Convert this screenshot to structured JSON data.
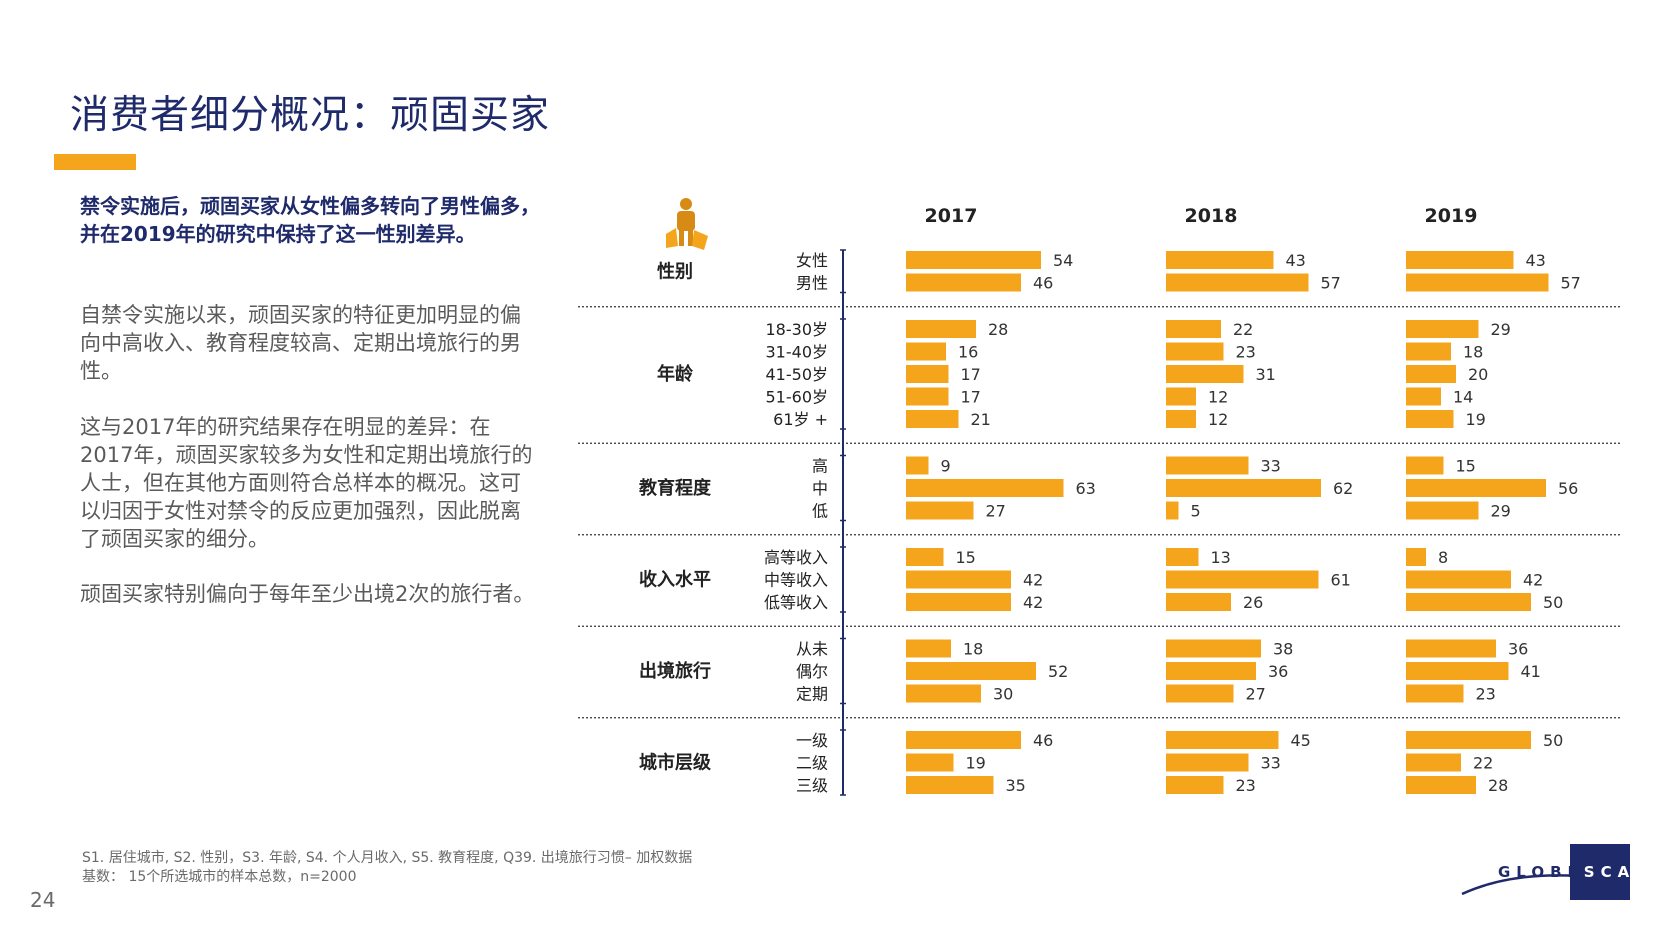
{
  "title": "消费者细分概况：顽固买家",
  "lead": "禁令实施后，顽固买家从女性偏多转向了男性偏多，并在2019年的研究中保持了这一性别差异。",
  "paragraphs": [
    "自禁令实施以来，顽固买家的特征更加明显的偏向中高收入、教育程度较高、定期出境旅行的男性。",
    "这与2017年的研究结果存在明显的差异：在2017年，顽固买家较多为女性和定期出境旅行的人士，但在其他方面则符合总样本的概况。这可以归因于女性对禁令的反应更加强烈，因此脱离了顽固买家的细分。",
    "顽固买家特别偏向于每年至少出境2次的旅行者。"
  ],
  "footnotes": [
    "S1. 居住城市, S2. 性别，S3. 年龄, S4. 个人月收入, S5. 教育程度, Q39. 出境旅行习惯– 加权数据",
    "基数： 15个所选城市的样本总数，n=2000"
  ],
  "page_number": "24",
  "logo": {
    "left": "GLOBE",
    "right": "SCAN"
  },
  "icon": "shopper-with-bags-icon",
  "colors": {
    "bar": "#f4a51c",
    "title": "#1f2a6b",
    "accent": "#f4a51c",
    "axis": "#1f2a6b"
  },
  "chart_data": {
    "type": "bar",
    "orientation": "horizontal",
    "series": [
      {
        "name": "2017"
      },
      {
        "name": "2018"
      },
      {
        "name": "2019"
      }
    ],
    "groups": [
      {
        "label": "性别",
        "rows": [
          {
            "label": "女性",
            "values": [
              54,
              43,
              43
            ]
          },
          {
            "label": "男性",
            "values": [
              46,
              57,
              57
            ]
          }
        ]
      },
      {
        "label": "年龄",
        "rows": [
          {
            "label": "18-30岁",
            "values": [
              28,
              22,
              29
            ]
          },
          {
            "label": "31-40岁",
            "values": [
              16,
              23,
              18
            ]
          },
          {
            "label": "41-50岁",
            "values": [
              17,
              31,
              20
            ]
          },
          {
            "label": "51-60岁",
            "values": [
              17,
              12,
              14
            ]
          },
          {
            "label": "61岁 +",
            "values": [
              21,
              12,
              19
            ]
          }
        ]
      },
      {
        "label": "教育程度",
        "rows": [
          {
            "label": "高",
            "values": [
              9,
              33,
              15
            ]
          },
          {
            "label": "中",
            "values": [
              63,
              62,
              56
            ]
          },
          {
            "label": "低",
            "values": [
              27,
              5,
              29
            ]
          }
        ]
      },
      {
        "label": "收入水平",
        "rows": [
          {
            "label": "高等收入",
            "values": [
              15,
              13,
              8
            ]
          },
          {
            "label": "中等收入",
            "values": [
              42,
              61,
              42
            ]
          },
          {
            "label": "低等收入",
            "values": [
              42,
              26,
              50
            ]
          }
        ]
      },
      {
        "label": "出境旅行",
        "rows": [
          {
            "label": "从未",
            "values": [
              18,
              38,
              36
            ]
          },
          {
            "label": "偶尔",
            "values": [
              52,
              36,
              41
            ]
          },
          {
            "label": "定期",
            "values": [
              30,
              27,
              23
            ]
          }
        ]
      },
      {
        "label": "城市层级",
        "rows": [
          {
            "label": "一级",
            "values": [
              46,
              45,
              50
            ]
          },
          {
            "label": "二级",
            "values": [
              19,
              33,
              22
            ]
          },
          {
            "label": "三级",
            "values": [
              35,
              23,
              28
            ]
          }
        ]
      }
    ],
    "xlim": [
      0,
      100
    ],
    "grid": false,
    "legend": "none"
  }
}
